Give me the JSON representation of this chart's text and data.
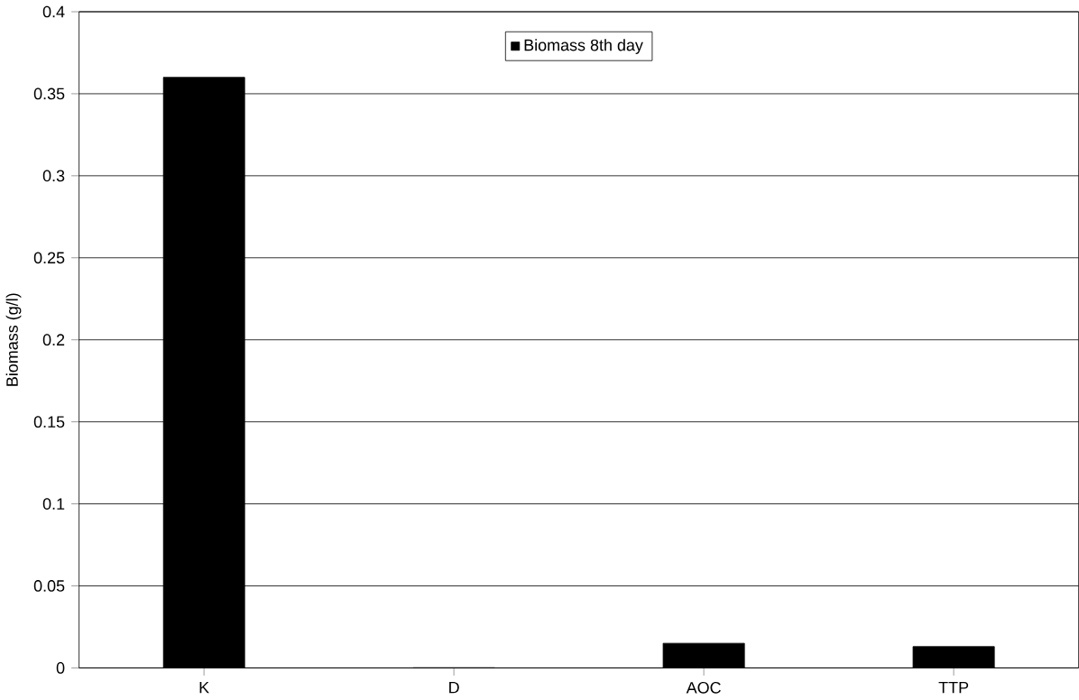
{
  "chart_data": {
    "type": "bar",
    "ylabel": "Biomass (g/l)",
    "categories": [
      "K",
      "D",
      "AOC",
      "TTP"
    ],
    "series": [
      {
        "name": "Biomass 8th day",
        "color": "#000000",
        "values": [
          0.36,
          0,
          0.015,
          0.013
        ]
      }
    ],
    "ylim": [
      0,
      0.4
    ],
    "yticks": [
      0,
      0.05,
      0.1,
      0.15,
      0.2,
      0.25,
      0.3,
      0.35,
      0.4
    ],
    "grid": "y",
    "legend": "top"
  }
}
